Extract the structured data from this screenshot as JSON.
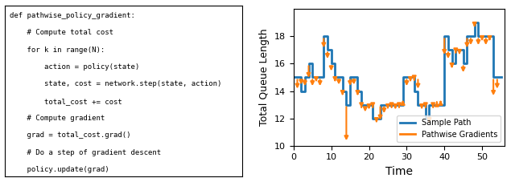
{
  "chart_data": {
    "type": "line",
    "xlabel": "Time",
    "ylabel": "Total Queue Length",
    "xlim": [
      0,
      56
    ],
    "ylim": [
      10,
      20
    ],
    "xticks": [
      0,
      10,
      20,
      30,
      40,
      50
    ],
    "yticks": [
      10,
      12,
      14,
      16,
      18
    ],
    "legend": "lower right",
    "annotations": [
      "def pathwise_policy_gradient:",
      "    # Compute total cost",
      "    for k in range(N):",
      "        action = policy(state)",
      "        state, cost = network.step(state, action)",
      "        total_cost += cost",
      "    # Compute gradient",
      "    grad = total_cost.grad()",
      "    # Do a step of gradient descent",
      "    policy.update(grad)"
    ],
    "series": [
      {
        "name": "Sample Path",
        "type": "line",
        "x": [
          0,
          1,
          1,
          2,
          2,
          3,
          3,
          4,
          4,
          5,
          5,
          6,
          6,
          7,
          7,
          8,
          8,
          9,
          9,
          10,
          10,
          11,
          11,
          12,
          12,
          13,
          13,
          14,
          14,
          15,
          15,
          16,
          16,
          17,
          17,
          18,
          18,
          19,
          19,
          20,
          20,
          21,
          21,
          22,
          22,
          23,
          23,
          24,
          24,
          25,
          25,
          26,
          26,
          27,
          27,
          28,
          28,
          29,
          29,
          30,
          30,
          31,
          31,
          32,
          32,
          33,
          33,
          34,
          34,
          35,
          35,
          36,
          36,
          37,
          37,
          38,
          38,
          39,
          39,
          40,
          40,
          41,
          41,
          42,
          42,
          43,
          43,
          44,
          44,
          45,
          45,
          46,
          46,
          47,
          47,
          48,
          48,
          49,
          49,
          50,
          50,
          51,
          51,
          52,
          52,
          53,
          53,
          54,
          54,
          55
        ],
        "values": [
          15,
          15,
          15,
          15,
          14,
          14,
          15,
          15,
          16,
          16,
          15,
          15,
          15,
          15,
          15,
          15,
          18,
          18,
          17,
          17,
          16,
          16,
          15,
          15,
          15,
          15,
          14,
          14,
          13,
          13,
          15,
          15,
          15,
          15,
          14,
          14,
          13,
          13,
          13,
          13,
          13,
          13,
          12,
          12,
          12,
          12,
          13,
          13,
          13,
          13,
          13,
          13,
          13,
          13,
          13,
          13,
          13,
          13,
          15,
          15,
          15,
          15,
          15,
          15,
          14,
          14,
          13,
          13,
          13,
          13,
          12,
          12,
          13,
          13,
          13,
          13,
          13,
          13,
          13,
          13,
          18,
          18,
          17,
          17,
          16,
          16,
          17,
          17,
          17,
          17,
          16,
          16,
          18,
          18,
          18,
          18,
          19,
          19,
          18,
          18,
          18,
          18,
          18,
          18,
          18,
          18,
          15,
          15,
          15,
          15
        ]
      },
      {
        "name": "Pathwise Gradients",
        "type": "arrow",
        "x": [
          1,
          2,
          3,
          4,
          5,
          6,
          7,
          8,
          9,
          10,
          11,
          12,
          13,
          14,
          15,
          16,
          17,
          18,
          19,
          20,
          21,
          22,
          23,
          24,
          25,
          26,
          27,
          28,
          29,
          30,
          31,
          32,
          33,
          34,
          35,
          36,
          37,
          38,
          39,
          40,
          41,
          42,
          43,
          44,
          45,
          46,
          47,
          48,
          49,
          50,
          51,
          52,
          53,
          54
        ],
        "start": [
          15,
          15,
          15,
          16,
          15,
          15,
          15,
          18,
          17,
          16,
          15,
          15,
          14,
          13,
          15,
          15,
          14,
          13,
          13,
          13,
          13,
          12,
          13,
          13,
          13,
          13,
          13,
          13,
          13,
          15,
          15,
          15,
          15,
          13,
          13,
          12,
          13,
          13,
          13,
          18,
          17,
          16,
          17,
          17,
          16,
          18,
          18,
          19,
          18,
          18,
          18,
          18,
          15,
          15
        ],
        "delta": [
          -1.0,
          -0.7,
          -0.8,
          -1.2,
          -0.8,
          -0.5,
          -0.8,
          -1.0,
          -0.8,
          -0.7,
          -0.5,
          -0.7,
          -0.5,
          -2.8,
          -0.8,
          -0.7,
          -0.5,
          -0.4,
          -0.7,
          -0.5,
          -0.4,
          -0.5,
          -1.3,
          -0.8,
          -0.5,
          -0.4,
          -0.5,
          -0.4,
          0.5,
          -0.8,
          -0.5,
          -0.4,
          -1.0,
          -0.5,
          -0.4,
          -0.5,
          -0.4,
          0.4,
          0.5,
          -1.5,
          -0.8,
          -0.5,
          -0.4,
          -0.5,
          -0.8,
          -1.0,
          -0.8,
          -0.5,
          -0.8,
          -0.5,
          -0.8,
          -0.5,
          -1.5,
          -1.0
        ]
      }
    ]
  }
}
